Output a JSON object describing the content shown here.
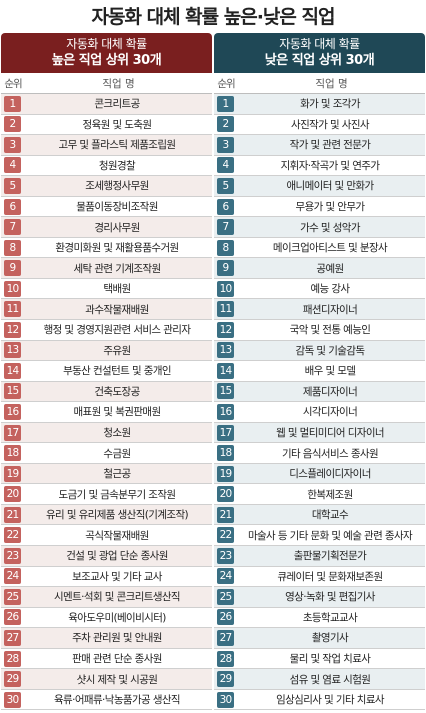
{
  "title": "자동화 대체 확률 높은·낮은 직업",
  "left": {
    "header_line1": "자동화 대체 확률",
    "header_line2": "높은 직업 상위 30개",
    "col_rank": "순위",
    "col_name": "직업 명",
    "rows": [
      {
        "rank": "1",
        "name": "콘크리트공"
      },
      {
        "rank": "2",
        "name": "정육원 및 도축원"
      },
      {
        "rank": "3",
        "name": "고무 및 플라스틱 제품조립원"
      },
      {
        "rank": "4",
        "name": "청원경찰"
      },
      {
        "rank": "5",
        "name": "조세행정사무원"
      },
      {
        "rank": "6",
        "name": "물품이동장비조작원"
      },
      {
        "rank": "7",
        "name": "경리사무원"
      },
      {
        "rank": "8",
        "name": "환경미화원 및 재활용품수거원"
      },
      {
        "rank": "9",
        "name": "세탁 관련 기계조작원"
      },
      {
        "rank": "10",
        "name": "택배원"
      },
      {
        "rank": "11",
        "name": "과수작물재배원"
      },
      {
        "rank": "12",
        "name": "행정 및 경영지원관련 서비스 관리자"
      },
      {
        "rank": "13",
        "name": "주유원"
      },
      {
        "rank": "14",
        "name": "부동산 컨설턴트 및 중개인"
      },
      {
        "rank": "15",
        "name": "건축도장공"
      },
      {
        "rank": "16",
        "name": "매표원 및 복권판매원"
      },
      {
        "rank": "17",
        "name": "청소원"
      },
      {
        "rank": "18",
        "name": "수금원"
      },
      {
        "rank": "19",
        "name": "철근공"
      },
      {
        "rank": "20",
        "name": "도금기 및 금속분무기 조작원"
      },
      {
        "rank": "21",
        "name": "유리 및 유리제품 생산직(기계조작)"
      },
      {
        "rank": "22",
        "name": "곡식작물재배원"
      },
      {
        "rank": "23",
        "name": "건설 및 광업 단순 종사원"
      },
      {
        "rank": "24",
        "name": "보조교사 및 기타 교사"
      },
      {
        "rank": "25",
        "name": "시멘트·석회 및 콘크리트생산직"
      },
      {
        "rank": "26",
        "name": "육아도우미(베이비시터)"
      },
      {
        "rank": "27",
        "name": "주차 관리원 및 안내원"
      },
      {
        "rank": "28",
        "name": "판매 관련 단순 종사원"
      },
      {
        "rank": "29",
        "name": "샷시 제작 및 시공원"
      },
      {
        "rank": "30",
        "name": "육류·어패류·낙농품가공 생산직"
      }
    ]
  },
  "right": {
    "header_line1": "자동화 대체 확률",
    "header_line2": "낮은 직업 상위 30개",
    "col_rank": "순위",
    "col_name": "직업 명",
    "rows": [
      {
        "rank": "1",
        "name": "화가 및 조각가"
      },
      {
        "rank": "2",
        "name": "사진작가 및 사진사"
      },
      {
        "rank": "3",
        "name": "작가 및 관련 전문가"
      },
      {
        "rank": "4",
        "name": "지휘자·작곡가 및 연주가"
      },
      {
        "rank": "5",
        "name": "애니메이터 및 만화가"
      },
      {
        "rank": "6",
        "name": "무용가 및 안무가"
      },
      {
        "rank": "7",
        "name": "가수 및 성악가"
      },
      {
        "rank": "8",
        "name": "메이크업아티스트 및 분장사"
      },
      {
        "rank": "9",
        "name": "공예원"
      },
      {
        "rank": "10",
        "name": "예능 강사"
      },
      {
        "rank": "11",
        "name": "패션디자이너"
      },
      {
        "rank": "12",
        "name": "국악 및 전통 예능인"
      },
      {
        "rank": "13",
        "name": "감독 및 기술감독"
      },
      {
        "rank": "14",
        "name": "배우 및 모델"
      },
      {
        "rank": "15",
        "name": "제품디자이너"
      },
      {
        "rank": "16",
        "name": "시각디자이너"
      },
      {
        "rank": "17",
        "name": "웹 및 멀티미디어 디자이너"
      },
      {
        "rank": "18",
        "name": "기타 음식서비스 종사원"
      },
      {
        "rank": "19",
        "name": "디스플레이디자이너"
      },
      {
        "rank": "20",
        "name": "한복제조원"
      },
      {
        "rank": "21",
        "name": "대학교수"
      },
      {
        "rank": "22",
        "name": "마술사 등 기타 문화 및 예술 관련 종사자"
      },
      {
        "rank": "23",
        "name": "출판물기획전문가"
      },
      {
        "rank": "24",
        "name": "큐레이터 및 문화재보존원"
      },
      {
        "rank": "25",
        "name": "영상·녹화 및 편집기사"
      },
      {
        "rank": "26",
        "name": "초등학교교사"
      },
      {
        "rank": "27",
        "name": "촬영기사"
      },
      {
        "rank": "28",
        "name": "물리 및 작업 치료사"
      },
      {
        "rank": "29",
        "name": "섬유 및 염료 시험원"
      },
      {
        "rank": "30",
        "name": "임상심리사 및 기타 치료사"
      }
    ]
  }
}
